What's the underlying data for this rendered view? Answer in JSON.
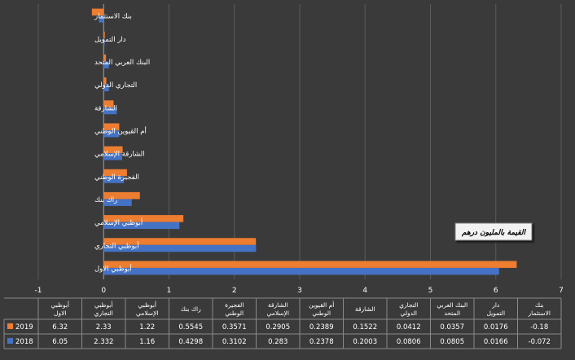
{
  "chart_data": {
    "type": "bar",
    "orientation": "horizontal",
    "categories": [
      "أبوظبي الاول",
      "أبوظبي التجاري",
      "أبوظبي الإسلامي",
      "راك بنك",
      "الفجيرة الوطني",
      "الشارقة الإسلامي",
      "أم القيوين الوطني",
      "الشارقة",
      "التجاري الدولي",
      "البنك العربي المتحد",
      "دار التمويل",
      "بنك الاستثمار"
    ],
    "table_categories": [
      "أبوظبي الاول",
      "أبوظبي التجاري",
      "أبوظبي الإسلامي",
      "راك بنك",
      "الفجيرة الوطني",
      "الشارقة الإسلامي",
      "أم القيوين الوطني",
      "الشارقة",
      "التجاري الدولي",
      "البنك العربي المتحد",
      "دار التمويل",
      "بنك الاستثمار"
    ],
    "series": [
      {
        "name": "2019",
        "color": "#ed7d31",
        "values": [
          6.32,
          2.33,
          1.22,
          0.5545,
          0.3571,
          0.2905,
          0.2389,
          0.1522,
          0.0412,
          0.0357,
          0.0176,
          -0.18
        ]
      },
      {
        "name": "2018",
        "color": "#4472c4",
        "values": [
          6.05,
          2.332,
          1.16,
          0.4298,
          0.3102,
          0.283,
          0.2378,
          0.2003,
          0.0806,
          0.0805,
          0.0166,
          -0.072
        ]
      }
    ],
    "table_values": {
      "2019": [
        "6.32",
        "2.33",
        "1.22",
        "0.5545",
        "0.3571",
        "0.2905",
        "0.2389",
        "0.1522",
        "0.0412",
        "0.0357",
        "0.0176",
        "-0.18"
      ],
      "2018": [
        "6.05",
        "2.332",
        "1.16",
        "0.4298",
        "0.3102",
        "0.283",
        "0.2378",
        "0.2003",
        "0.0806",
        "0.0805",
        "0.0166",
        "-0.072"
      ]
    },
    "xlim": [
      -1,
      7
    ],
    "xticks": [
      "-1",
      "0",
      "1",
      "2",
      "3",
      "4",
      "5",
      "6",
      "7"
    ],
    "grid": true,
    "annotation": "القيمة بالمليون درهم",
    "legend_labels": [
      "2018",
      "2019"
    ],
    "data_table": true
  }
}
